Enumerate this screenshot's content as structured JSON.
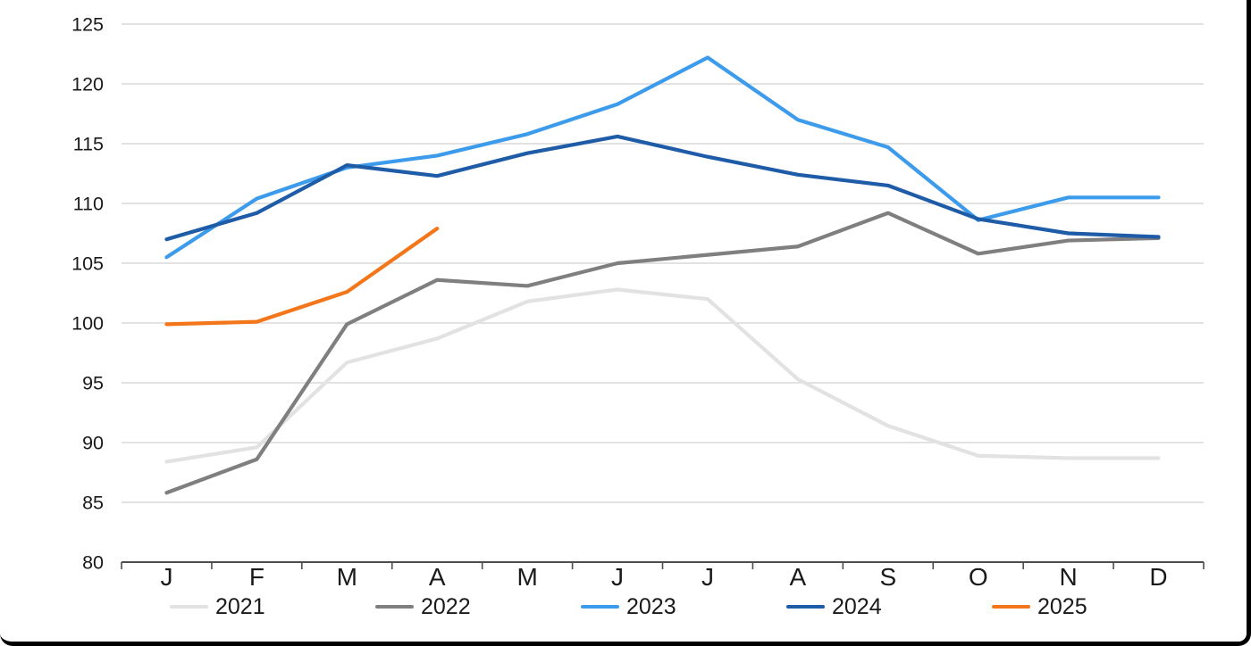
{
  "chart_data": {
    "type": "line",
    "title": "",
    "xlabel": "",
    "ylabel": "",
    "x_labels": [
      "J",
      "F",
      "M",
      "A",
      "M",
      "J",
      "J",
      "A",
      "S",
      "O",
      "N",
      "D"
    ],
    "ylim": [
      80,
      125
    ],
    "ytick_step": 5,
    "ytick_labels": [
      "80",
      "85",
      "90",
      "95",
      "100",
      "105",
      "110",
      "115",
      "120",
      "125"
    ],
    "grid": "horizontal",
    "legend_position": "bottom",
    "series": [
      {
        "name": "2021",
        "color": "#E2E2E2",
        "values": [
          88.4,
          89.6,
          96.7,
          98.7,
          101.8,
          102.8,
          102.0,
          95.3,
          91.4,
          88.9,
          88.7,
          88.7
        ]
      },
      {
        "name": "2022",
        "color": "#7F7F7F",
        "values": [
          85.8,
          88.6,
          99.9,
          103.6,
          103.1,
          105.0,
          105.7,
          106.4,
          109.2,
          105.8,
          106.9,
          107.1
        ]
      },
      {
        "name": "2023",
        "color": "#3D9BEC",
        "values": [
          105.5,
          110.4,
          113.0,
          114.0,
          115.8,
          118.3,
          122.2,
          117.0,
          114.7,
          108.6,
          110.5,
          110.5
        ]
      },
      {
        "name": "2024",
        "color": "#1F5CA8",
        "values": [
          107.0,
          109.2,
          113.2,
          112.3,
          114.2,
          115.6,
          113.9,
          112.4,
          111.5,
          108.7,
          107.5,
          107.2
        ]
      },
      {
        "name": "2025",
        "color": "#F3761A",
        "values": [
          99.9,
          100.1,
          102.6,
          107.9
        ]
      }
    ],
    "colors": {
      "gridline": "#D9D9D9",
      "axis": "#4D4D4D",
      "tick_text": "#1a1a1a",
      "frame_border": "#000000"
    }
  }
}
